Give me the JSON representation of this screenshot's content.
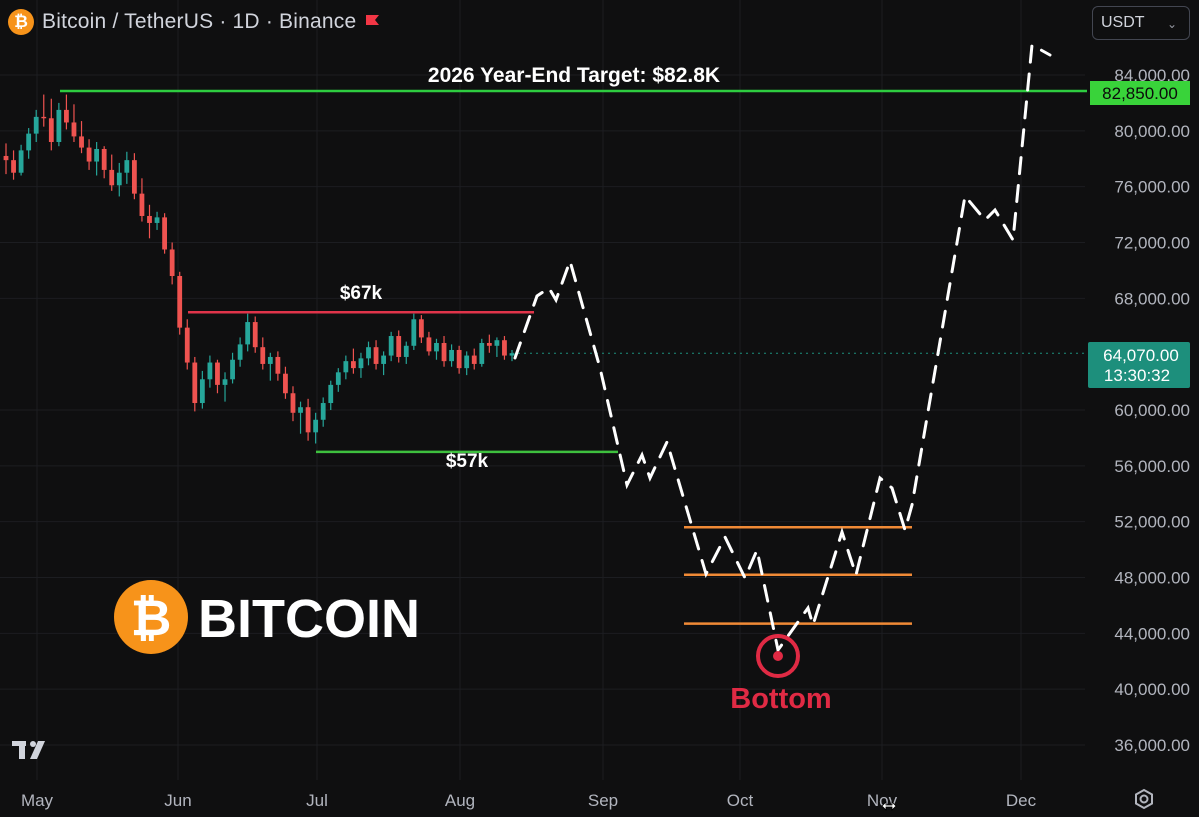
{
  "header": {
    "title": "Bitcoin / TetherUS · 1D · Binance",
    "coin_symbol": "₿",
    "flag_color": "#f23645"
  },
  "currency_select": {
    "value": "USDT"
  },
  "colors": {
    "background": "#0f0f10",
    "up": "#26a69a",
    "down": "#ef5350",
    "target_line": "#2ecc40",
    "resistance_line": "#e0344a",
    "support_line": "#3ec03e",
    "zone_line": "#f08a36",
    "projection": "#ffffff",
    "bottom_marker": "#e02a44",
    "last_price_bg": "#1d8f7c",
    "target_badge_bg": "#39d33a",
    "axis_text": "#b2b5be"
  },
  "chart_data": {
    "type": "line",
    "title": "",
    "x_axis": {
      "ticks": [
        "May",
        "Jun",
        "Jul",
        "Aug",
        "Sep",
        "Oct",
        "Nov",
        "Dec"
      ]
    },
    "y_axis": {
      "ticks": [
        "84,000.00",
        "80,000.00",
        "76,000.00",
        "72,000.00",
        "68,000.00",
        "60,000.00",
        "56,000.00",
        "52,000.00",
        "48,000.00",
        "44,000.00",
        "40,000.00",
        "36,000.00"
      ],
      "ylim": [
        33000,
        88000
      ]
    },
    "candles": [
      [
        78200,
        79100,
        76900,
        77900
      ],
      [
        77900,
        78600,
        76500,
        77000
      ],
      [
        77000,
        79000,
        76800,
        78600
      ],
      [
        78600,
        80200,
        78000,
        79800
      ],
      [
        79800,
        81500,
        79200,
        81000
      ],
      [
        81000,
        82600,
        80300,
        80900
      ],
      [
        80900,
        82300,
        78600,
        79200
      ],
      [
        79200,
        82000,
        78900,
        81500
      ],
      [
        81500,
        82600,
        80100,
        80600
      ],
      [
        80600,
        81900,
        79200,
        79600
      ],
      [
        79600,
        80700,
        78400,
        78800
      ],
      [
        78800,
        79400,
        77200,
        77800
      ],
      [
        77800,
        79200,
        76800,
        78700
      ],
      [
        78700,
        78900,
        76600,
        77200
      ],
      [
        77200,
        78300,
        75700,
        76100
      ],
      [
        76100,
        77700,
        75300,
        77000
      ],
      [
        77000,
        78500,
        76200,
        77900
      ],
      [
        77900,
        78400,
        75100,
        75500
      ],
      [
        75500,
        76600,
        73500,
        73900
      ],
      [
        73900,
        74700,
        72300,
        73400
      ],
      [
        73400,
        74200,
        72900,
        73800
      ],
      [
        73800,
        74100,
        71200,
        71500
      ],
      [
        71500,
        72000,
        69000,
        69600
      ],
      [
        69600,
        69900,
        65400,
        65900
      ],
      [
        65900,
        66500,
        62900,
        63400
      ],
      [
        63400,
        63800,
        59900,
        60500
      ],
      [
        60500,
        62800,
        60100,
        62200
      ],
      [
        62200,
        63900,
        61600,
        63400
      ],
      [
        63400,
        63600,
        61200,
        61800
      ],
      [
        61800,
        62700,
        60600,
        62200
      ],
      [
        62200,
        64100,
        61900,
        63600
      ],
      [
        63600,
        65200,
        63100,
        64700
      ],
      [
        64700,
        66900,
        64200,
        66300
      ],
      [
        66300,
        66700,
        64100,
        64500
      ],
      [
        64500,
        65200,
        62900,
        63300
      ],
      [
        63300,
        64100,
        62100,
        63800
      ],
      [
        63800,
        64200,
        62100,
        62600
      ],
      [
        62600,
        63100,
        60800,
        61200
      ],
      [
        61200,
        61700,
        59200,
        59800
      ],
      [
        59800,
        60600,
        58300,
        60200
      ],
      [
        60200,
        60800,
        57800,
        58400
      ],
      [
        58400,
        59800,
        57600,
        59300
      ],
      [
        59300,
        60900,
        58800,
        60500
      ],
      [
        60500,
        62100,
        60000,
        61800
      ],
      [
        61800,
        63000,
        61300,
        62700
      ],
      [
        62700,
        63900,
        62200,
        63500
      ],
      [
        63500,
        64400,
        62600,
        63000
      ],
      [
        63000,
        64100,
        62300,
        63700
      ],
      [
        63700,
        64900,
        63200,
        64500
      ],
      [
        64500,
        65000,
        62900,
        63300
      ],
      [
        63300,
        64200,
        62500,
        63900
      ],
      [
        63900,
        65600,
        63500,
        65300
      ],
      [
        65300,
        65700,
        63400,
        63800
      ],
      [
        63800,
        64900,
        63300,
        64600
      ],
      [
        64600,
        66900,
        64300,
        66500
      ],
      [
        66500,
        66800,
        64800,
        65200
      ],
      [
        65200,
        65600,
        63900,
        64200
      ],
      [
        64200,
        65100,
        63600,
        64800
      ],
      [
        64800,
        65300,
        63100,
        63500
      ],
      [
        63500,
        64700,
        63100,
        64300
      ],
      [
        64300,
        64600,
        62600,
        63000
      ],
      [
        63000,
        64200,
        62500,
        63900
      ],
      [
        63900,
        64400,
        62900,
        63300
      ],
      [
        63300,
        65100,
        63100,
        64800
      ],
      [
        64800,
        65400,
        64100,
        64600
      ],
      [
        64600,
        65200,
        63800,
        65000
      ],
      [
        65000,
        65300,
        63600,
        63900
      ],
      [
        63900,
        64300,
        63500,
        64070
      ]
    ],
    "annotations": {
      "target": {
        "label": "2026 Year-End Target: $82.8K",
        "value": 82850,
        "badge": "82,850.00"
      },
      "resistance": {
        "label": "$67k",
        "value": 67000
      },
      "support": {
        "label": "$57k",
        "value": 57000
      },
      "zones": [
        51600,
        48200,
        44700
      ],
      "bottom_label": "Bottom",
      "last_price": {
        "value": 64070,
        "label": "64,070.00",
        "countdown": "13:30:32"
      }
    },
    "projection_path": [
      [
        515,
        358
      ],
      [
        537,
        296
      ],
      [
        549,
        288
      ],
      [
        556,
        300
      ],
      [
        570,
        261
      ],
      [
        600,
        368
      ],
      [
        627,
        485
      ],
      [
        642,
        455
      ],
      [
        650,
        478
      ],
      [
        667,
        442
      ],
      [
        706,
        574
      ],
      [
        725,
        537
      ],
      [
        745,
        578
      ],
      [
        757,
        550
      ],
      [
        778,
        650
      ],
      [
        808,
        608
      ],
      [
        813,
        625
      ],
      [
        842,
        532
      ],
      [
        856,
        575
      ],
      [
        880,
        478
      ],
      [
        892,
        488
      ],
      [
        905,
        530
      ],
      [
        912,
        505
      ],
      [
        965,
        196
      ],
      [
        985,
        220
      ],
      [
        995,
        210
      ],
      [
        1013,
        240
      ],
      [
        1032,
        45
      ],
      [
        1050,
        55
      ]
    ],
    "logo_text": "BITCOIN"
  }
}
